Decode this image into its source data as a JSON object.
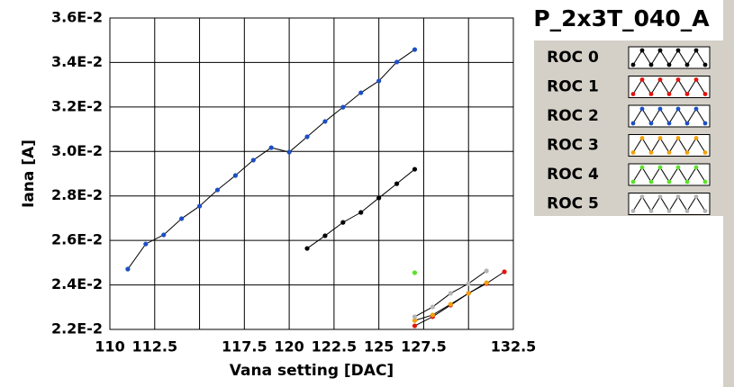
{
  "chart_data": {
    "type": "line",
    "title": "P_2x3T_040_A",
    "xlabel": "Vana setting [DAC]",
    "ylabel": "Iana [A]",
    "xlim": [
      110,
      132.5
    ],
    "xticks": [
      110,
      112.5,
      {
        "value": 115,
        "label": null
      },
      117.5,
      120,
      122.5,
      125,
      127.5,
      {
        "value": 130,
        "label": null
      },
      132.5
    ],
    "ylim": [
      0.022,
      0.036
    ],
    "yticks": [
      {
        "value": 0.022,
        "label": "2.2E-2"
      },
      {
        "value": 0.024,
        "label": "2.4E-2"
      },
      {
        "value": 0.026,
        "label": "2.6E-2"
      },
      {
        "value": 0.028,
        "label": "2.8E-2"
      },
      {
        "value": 0.03,
        "label": "3.0E-2"
      },
      {
        "value": 0.032,
        "label": "3.2E-2"
      },
      {
        "value": 0.034,
        "label": "3.4E-2"
      },
      {
        "value": 0.036,
        "label": "3.6E-2"
      }
    ],
    "grid": true,
    "legend": "right",
    "series": [
      {
        "name": "ROC 0",
        "color": "#000000",
        "x": [
          121,
          122,
          123,
          124,
          125,
          126,
          127
        ],
        "values": [
          0.02564,
          0.02621,
          0.02681,
          0.02726,
          0.02791,
          0.02855,
          0.0292
        ]
      },
      {
        "name": "ROC 1",
        "color": "#e8120c",
        "x": [
          127,
          128,
          129,
          130,
          131,
          132
        ],
        "values": [
          0.02216,
          0.02257,
          0.02309,
          0.02362,
          0.02406,
          0.02459
        ]
      },
      {
        "name": "ROC 2",
        "color": "#1d4fc4",
        "x": [
          111,
          112,
          113,
          114,
          115,
          116,
          117,
          118,
          119,
          120,
          121,
          122,
          123,
          124,
          125,
          126,
          127
        ],
        "values": [
          0.02471,
          0.02584,
          0.02625,
          0.02698,
          0.02754,
          0.02827,
          0.02892,
          0.02961,
          0.03017,
          0.02997,
          0.03066,
          0.03135,
          0.03199,
          0.03264,
          0.03317,
          0.03402,
          0.03458
        ]
      },
      {
        "name": "ROC 3",
        "color": "#f2a20c",
        "x": [
          127,
          128,
          129,
          130,
          131
        ],
        "values": [
          0.0224,
          0.02265,
          0.02313,
          0.02362,
          0.0241
        ]
      },
      {
        "name": "ROC 4",
        "color": "#5ce22a",
        "x": [
          127
        ],
        "values": [
          0.02455
        ]
      },
      {
        "name": "ROC 5",
        "color": "#b4b4b4",
        "x": [
          127,
          128,
          129,
          130,
          131
        ],
        "values": [
          0.02257,
          0.02301,
          0.02362,
          0.02406,
          0.02463
        ]
      }
    ]
  }
}
